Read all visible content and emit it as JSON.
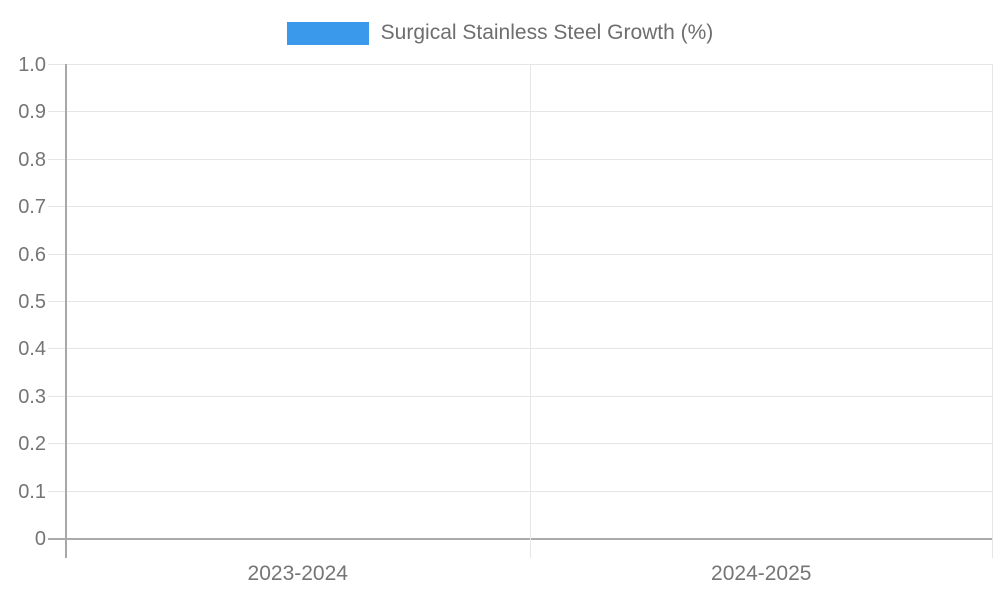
{
  "chart_data": {
    "type": "bar",
    "categories": [
      "2023-2024",
      "2024-2025"
    ],
    "series": [
      {
        "name": "Surgical Stainless Steel Growth (%)",
        "color": "#3b99ec",
        "values": [
          0,
          0
        ]
      }
    ],
    "title": "",
    "xlabel": "",
    "ylabel": "",
    "ylim": [
      0,
      1.0
    ],
    "yticks": [
      0,
      0.1,
      0.2,
      0.3,
      0.4,
      0.5,
      0.6,
      0.7,
      0.8,
      0.9,
      1.0
    ],
    "ytick_labels": [
      "0",
      "0.1",
      "0.2",
      "0.3",
      "0.4",
      "0.5",
      "0.6",
      "0.7",
      "0.8",
      "0.9",
      "1.0"
    ],
    "grid": true,
    "legend_position": "top-center",
    "colors": {
      "gridline": "#e6e6e6",
      "axis_line": "#a8a8a8",
      "zero_line": "#ababab",
      "tick_text": "#757575",
      "legend_text": "#6e6e6e",
      "background": "#ffffff"
    }
  }
}
